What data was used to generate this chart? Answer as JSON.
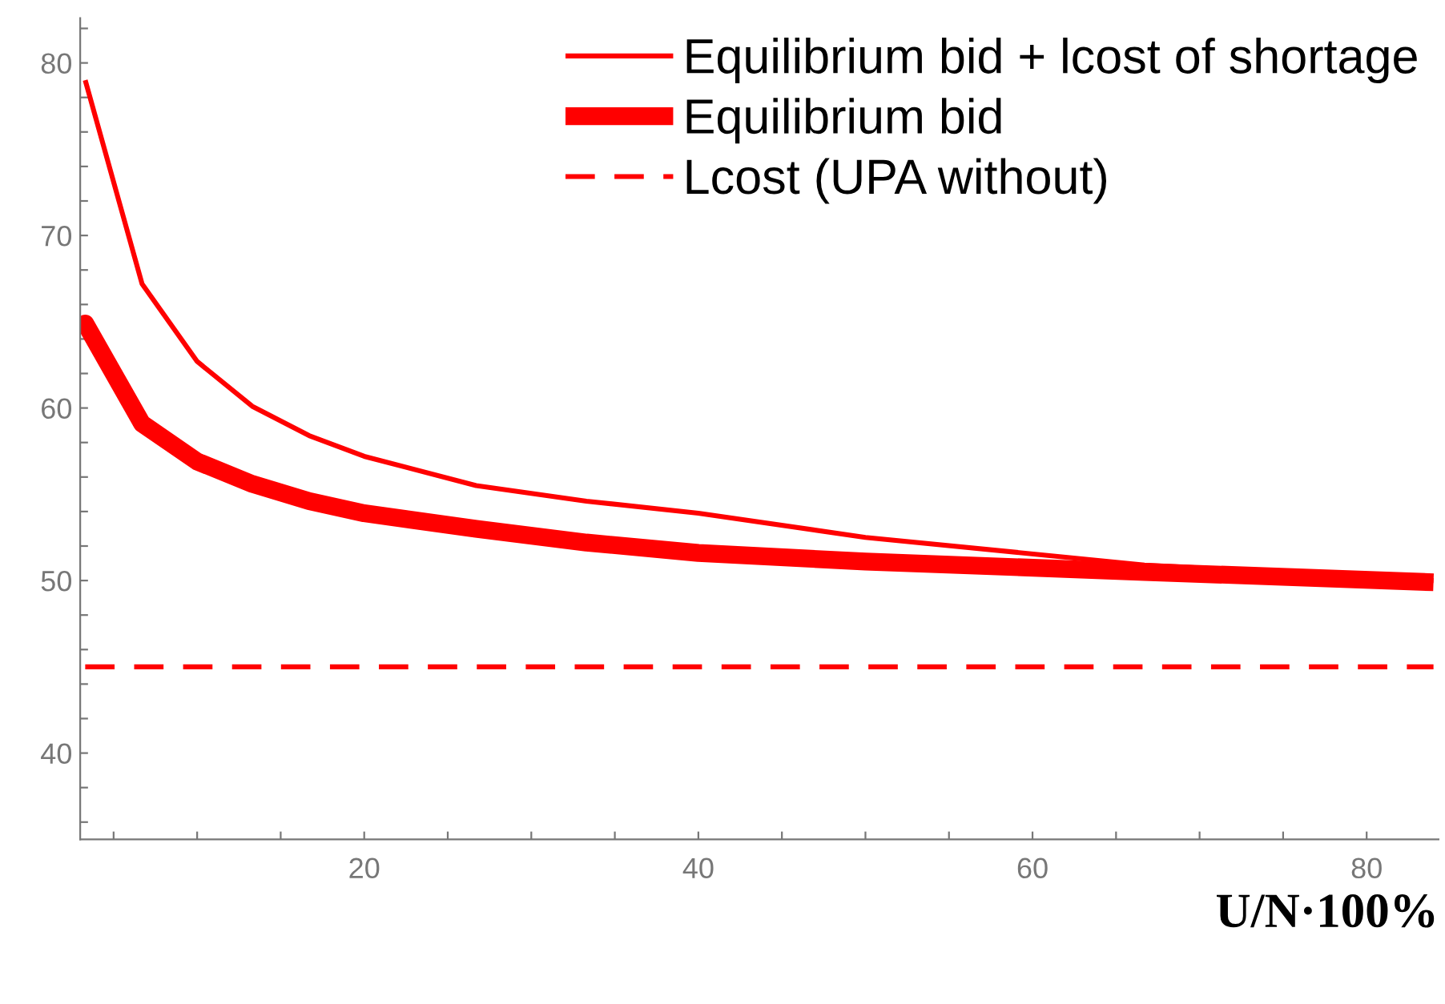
{
  "chart_data": {
    "type": "line",
    "xlabel": "U/N·100%",
    "xlim": [
      3,
      84.3
    ],
    "ylim": [
      35,
      82.6
    ],
    "xticks": [
      {
        "value": 5,
        "label": null
      },
      {
        "value": 10,
        "label": null
      },
      {
        "value": 15,
        "label": null
      },
      20,
      {
        "value": 25,
        "label": null
      },
      {
        "value": 30,
        "label": null
      },
      {
        "value": 35,
        "label": null
      },
      40,
      {
        "value": 45,
        "label": null
      },
      {
        "value": 50,
        "label": null
      },
      {
        "value": 55,
        "label": null
      },
      60,
      {
        "value": 65,
        "label": null
      },
      {
        "value": 70,
        "label": null
      },
      {
        "value": 75,
        "label": null
      },
      80
    ],
    "yticks": [
      {
        "value": 36,
        "label": null
      },
      {
        "value": 38,
        "label": null
      },
      40,
      {
        "value": 42,
        "label": null
      },
      {
        "value": 44,
        "label": null
      },
      {
        "value": 46,
        "label": null
      },
      {
        "value": 48,
        "label": null
      },
      50,
      {
        "value": 52,
        "label": null
      },
      {
        "value": 54,
        "label": null
      },
      {
        "value": 56,
        "label": null
      },
      {
        "value": 58,
        "label": null
      },
      60,
      {
        "value": 62,
        "label": null
      },
      {
        "value": 64,
        "label": null
      },
      {
        "value": 66,
        "label": null
      },
      {
        "value": 68,
        "label": null
      },
      70,
      {
        "value": 72,
        "label": null
      },
      {
        "value": 74,
        "label": null
      },
      {
        "value": 76,
        "label": null
      },
      {
        "value": 78,
        "label": null
      },
      80,
      {
        "value": 82,
        "label": null
      }
    ],
    "grid": false,
    "legend": "top right",
    "series": [
      {
        "name": "Equilibrium bid + lcost of shortage",
        "color": "#ff0000",
        "line_style": "solid",
        "x": [
          3.3,
          6.7,
          10,
          13.3,
          16.7,
          20,
          26.7,
          33.3,
          40,
          50,
          66.7,
          84
        ],
        "values": [
          79.0,
          67.2,
          62.7,
          60.1,
          58.4,
          57.2,
          55.5,
          54.6,
          53.9,
          52.5,
          50.9,
          50.0
        ]
      },
      {
        "name": "Equilibrium bid",
        "color": "#ff0000",
        "line_style": "solid",
        "x": [
          3,
          3.3,
          6.7,
          10,
          13.3,
          16.7,
          20,
          26.7,
          33.3,
          40,
          50,
          66.7,
          84
        ],
        "values": [
          64.6,
          64.9,
          59.1,
          56.9,
          55.6,
          54.6,
          53.9,
          53.0,
          52.2,
          51.6,
          51.1,
          50.5,
          49.9
        ]
      },
      {
        "name": "Lcost (UPA without)",
        "color": "#ff0000",
        "line_style": "dashed",
        "x": [
          3.3,
          84
        ],
        "values": [
          45,
          45
        ]
      }
    ]
  }
}
